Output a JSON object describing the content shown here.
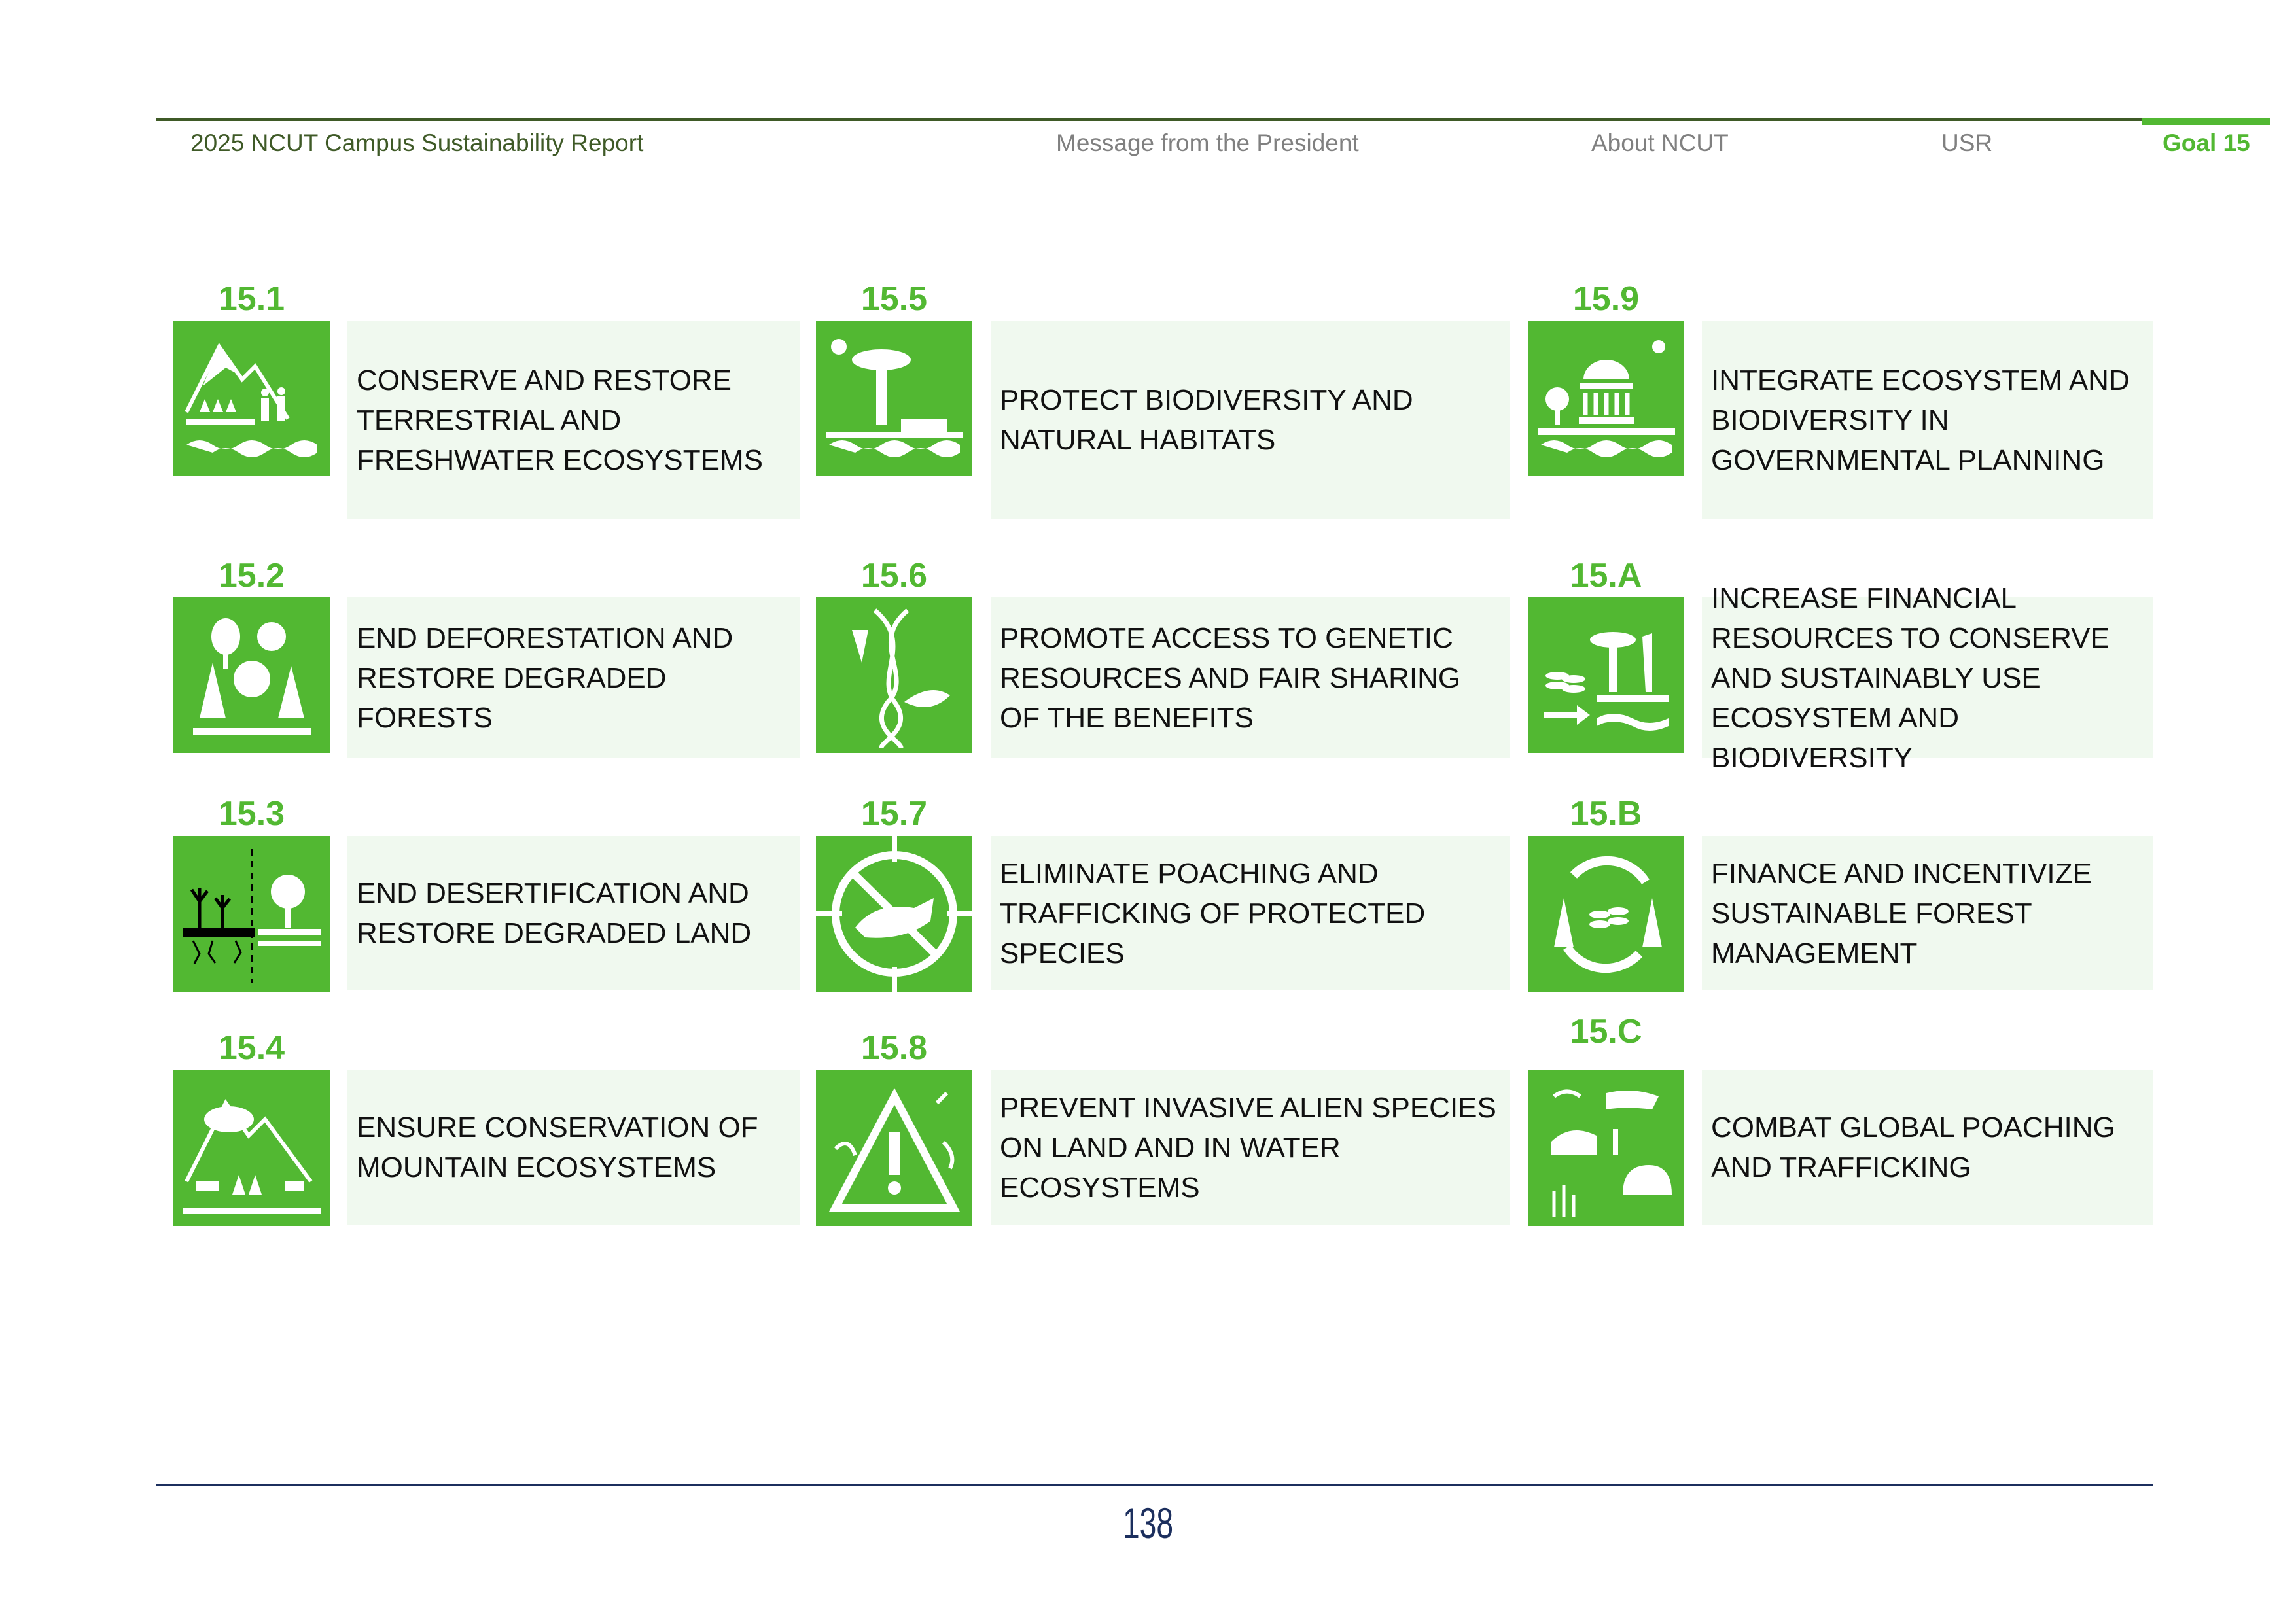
{
  "header": {
    "report_title": "2025 NCUT Campus Sustainability Report",
    "nav": [
      "Message from the President",
      "About NCUT",
      "USR",
      "Goal 15"
    ],
    "active": "Goal 15"
  },
  "colors": {
    "accent": "#52b832",
    "header_rule": "#3f5a27",
    "footer_rule": "#1c2f5e",
    "text_box": "#f0f9ef"
  },
  "columns": [
    {
      "items": [
        {
          "label": "15.1",
          "icon": "mountain-people-water-icon",
          "text": "CONSERVE AND RESTORE TERRESTRIAL AND FRESHWATER ECOSYSTEMS"
        },
        {
          "label": "15.2",
          "icon": "forest-icon",
          "text": "END DEFORESTATION AND RESTORE DEGRADED FORESTS"
        },
        {
          "label": "15.3",
          "icon": "desertification-icon",
          "text": "END DESERTIFICATION AND RESTORE DEGRADED LAND"
        },
        {
          "label": "15.4",
          "icon": "mountain-animals-icon",
          "text": "ENSURE CONSERVATION OF MOUNTAIN ECOSYSTEMS"
        }
      ]
    },
    {
      "items": [
        {
          "label": "15.5",
          "icon": "biodiversity-habitat-icon",
          "text": "PROTECT BIODIVERSITY AND NATURAL HABITATS"
        },
        {
          "label": "15.6",
          "icon": "dna-plant-icon",
          "text": "PROMOTE ACCESS TO GENETIC RESOURCES AND FAIR SHARING OF THE BENEFITS"
        },
        {
          "label": "15.7",
          "icon": "no-poaching-icon",
          "text": "ELIMINATE POACHING AND TRAFFICKING OF PROTECTED SPECIES"
        },
        {
          "label": "15.8",
          "icon": "invasive-warning-icon",
          "text": "PREVENT INVASIVE ALIEN SPECIES ON LAND AND IN WATER ECOSYSTEMS"
        }
      ]
    },
    {
      "items": [
        {
          "label": "15.9",
          "icon": "government-ecosystem-icon",
          "text": "INTEGRATE ECOSYSTEM AND BIODIVERSITY IN GOVERNMENTAL PLANNING"
        },
        {
          "label": "15.A",
          "icon": "financial-resources-icon",
          "text": "INCREASE FINANCIAL RESOURCES TO CONSERVE AND SUSTAINABLY USE ECOSYSTEM AND BIODIVERSITY"
        },
        {
          "label": "15.B",
          "icon": "forest-finance-cycle-icon",
          "text": "FINANCE AND INCENTIVIZE SUSTAINABLE FOREST MANAGEMENT"
        },
        {
          "label": "15.C",
          "icon": "wildlife-icon",
          "text": "COMBAT GLOBAL POACHING AND TRAFFICKING"
        }
      ]
    }
  ],
  "footer": {
    "page_number": "138"
  }
}
